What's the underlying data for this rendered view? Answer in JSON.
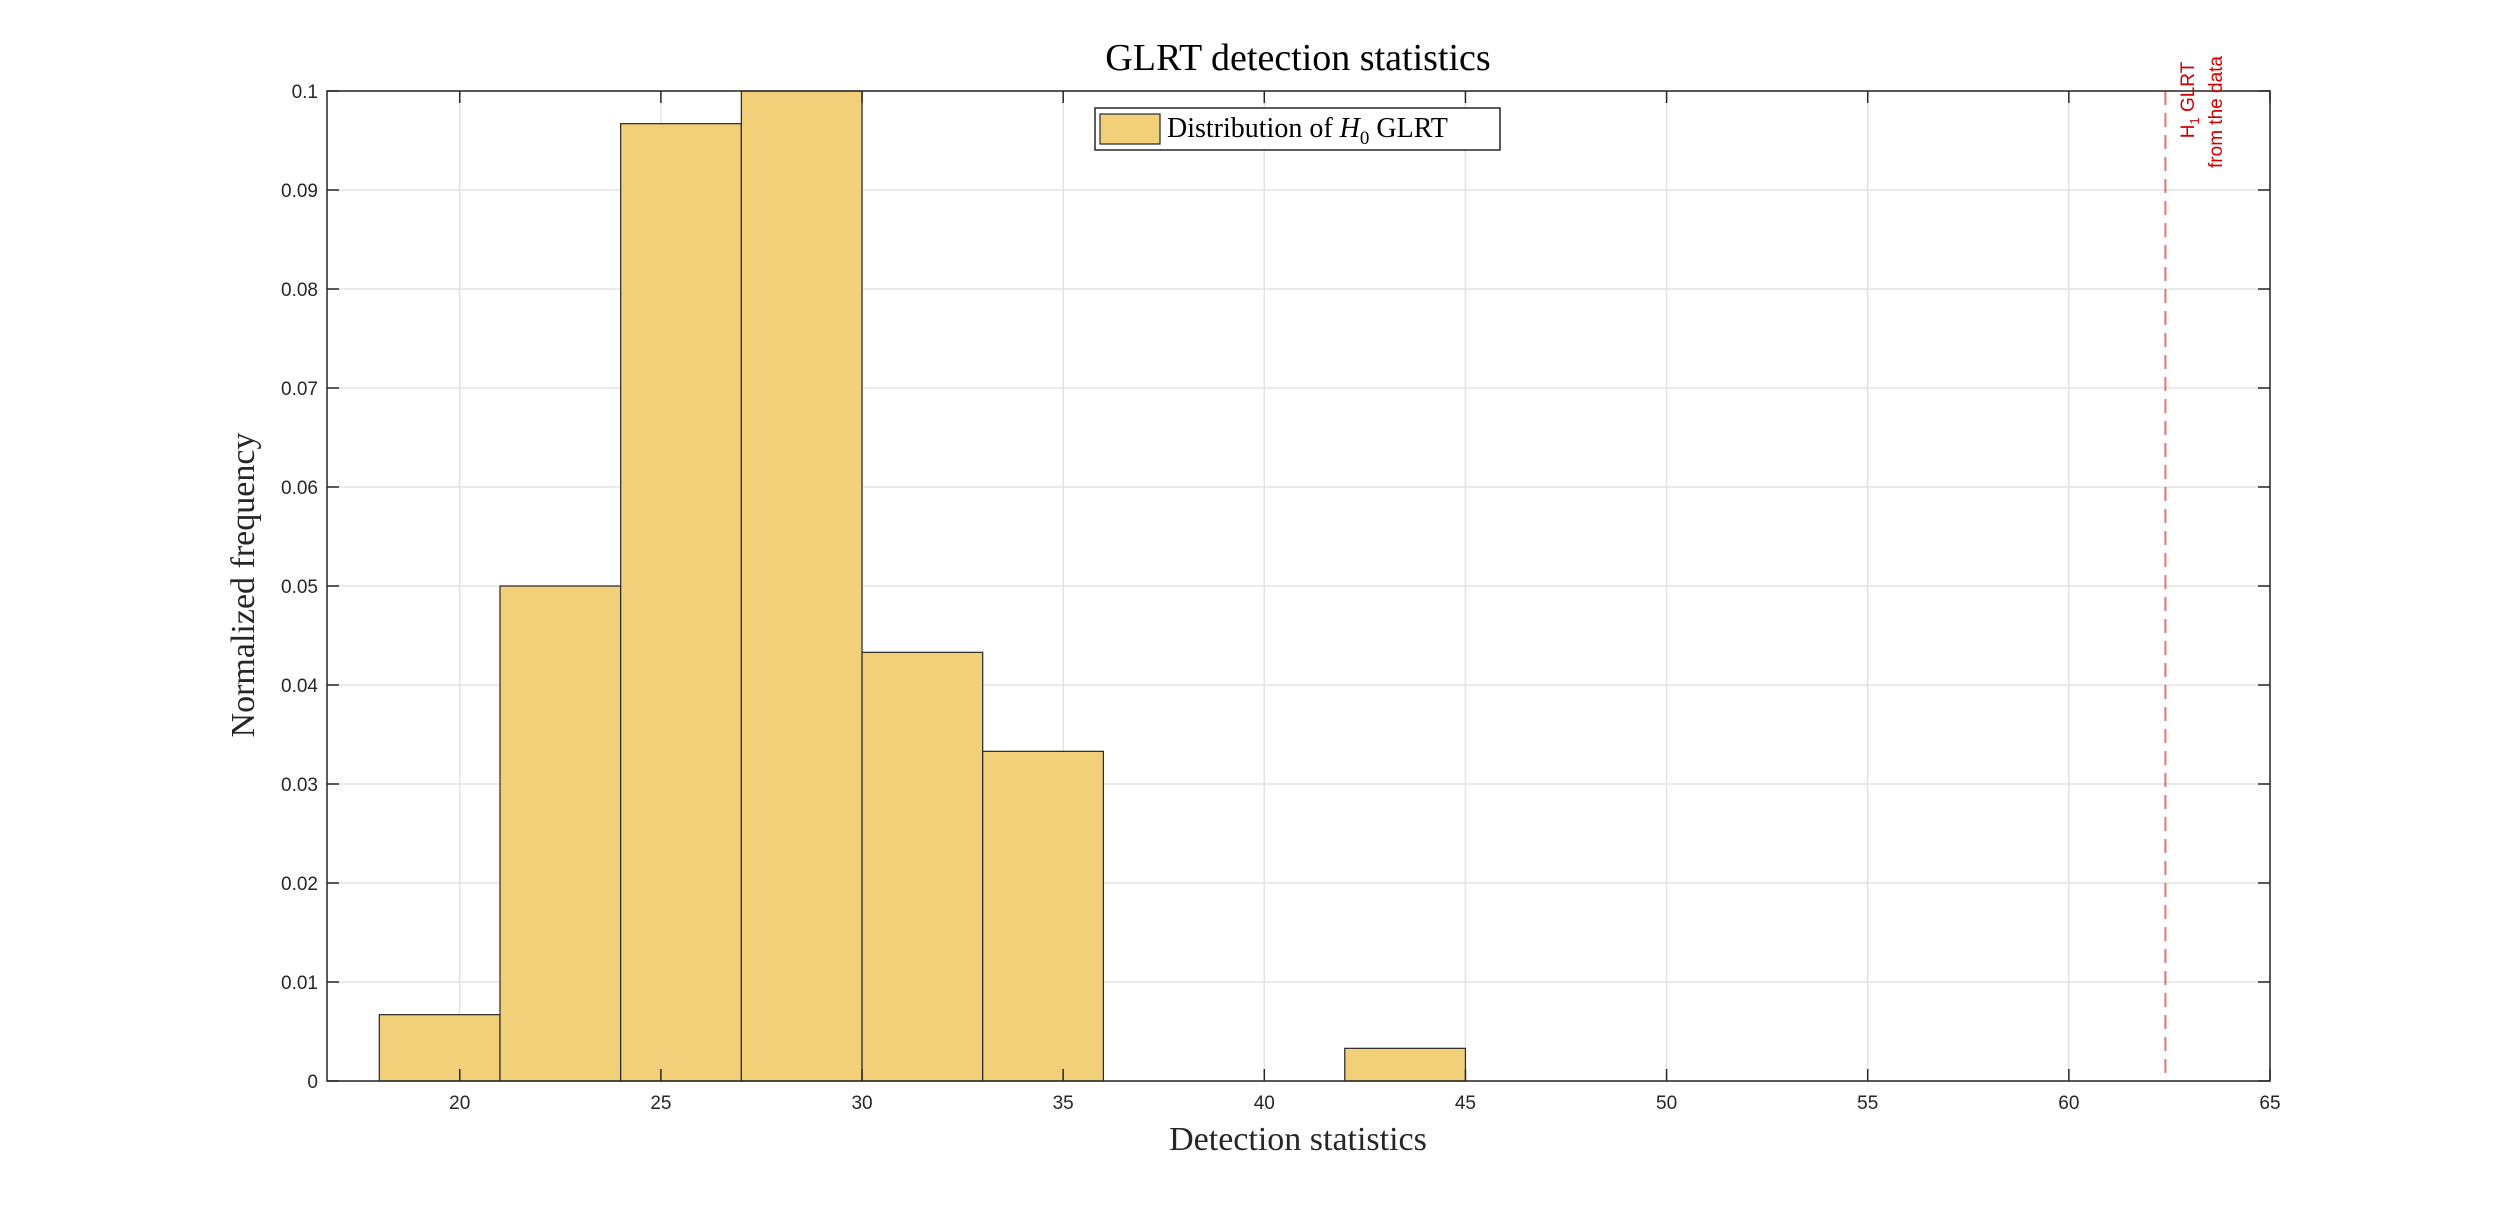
{
  "chart_data": {
    "type": "bar",
    "title": "GLRT detection statistics",
    "xlabel": "Detection statistics",
    "ylabel": "Normalized frequency",
    "xlim": [
      16.7,
      65
    ],
    "ylim": [
      0,
      0.1
    ],
    "xticks": [
      20,
      25,
      30,
      35,
      40,
      45,
      50,
      55,
      60,
      65
    ],
    "yticks": [
      0,
      0.01,
      0.02,
      0.03,
      0.04,
      0.05,
      0.06,
      0.07,
      0.08,
      0.09,
      0.1
    ],
    "grid": true,
    "legend_position": "top-center",
    "bar_color": "#f2d07a",
    "bins": [
      {
        "start": 18,
        "end": 21,
        "value": 0.0067
      },
      {
        "start": 21,
        "end": 24,
        "value": 0.05
      },
      {
        "start": 24,
        "end": 27,
        "value": 0.0967
      },
      {
        "start": 27,
        "end": 30,
        "value": 0.1
      },
      {
        "start": 30,
        "end": 33,
        "value": 0.0433
      },
      {
        "start": 33,
        "end": 36,
        "value": 0.0333
      },
      {
        "start": 42,
        "end": 45,
        "value": 0.0033
      }
    ],
    "legend": {
      "prefix": "Distribution of ",
      "symbol": "H",
      "subscript": "0",
      "suffix": " GLRT"
    },
    "h1_line": {
      "x": 62.4,
      "color": "#d00000",
      "label_line1_main": "H",
      "label_line1_sub": "1",
      "label_line1_rest": " GLRT",
      "label_line2": "from the data"
    }
  }
}
